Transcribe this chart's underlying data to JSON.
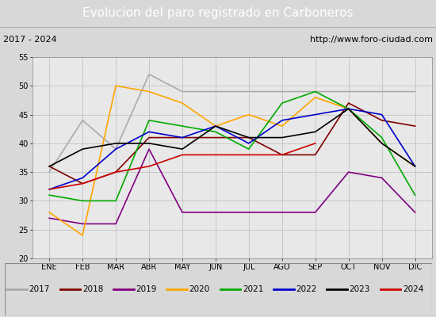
{
  "title": "Evolucion del paro registrado en Carboneros",
  "subtitle_left": "2017 - 2024",
  "subtitle_right": "http://www.foro-ciudad.com",
  "months": [
    "ENE",
    "FEB",
    "MAR",
    "ABR",
    "MAY",
    "JUN",
    "JUL",
    "AGO",
    "SEP",
    "OCT",
    "NOV",
    "DIC"
  ],
  "ylim": [
    20,
    55
  ],
  "yticks": [
    20,
    25,
    30,
    35,
    40,
    45,
    50,
    55
  ],
  "series": {
    "2017": {
      "color": "#aaaaaa",
      "values": [
        35,
        44,
        39,
        52,
        49,
        49,
        49,
        49,
        49,
        49,
        49,
        49
      ]
    },
    "2018": {
      "color": "#800000",
      "values": [
        36,
        33,
        35,
        41,
        41,
        41,
        41,
        38,
        38,
        47,
        44,
        43
      ]
    },
    "2019": {
      "color": "#800080",
      "values": [
        27,
        26,
        26,
        39,
        28,
        28,
        28,
        28,
        28,
        35,
        34,
        28
      ]
    },
    "2020": {
      "color": "#ffa500",
      "values": [
        28,
        24,
        50,
        49,
        47,
        43,
        45,
        43,
        48,
        46,
        40,
        36
      ]
    },
    "2021": {
      "color": "#00aa00",
      "values": [
        31,
        30,
        30,
        44,
        43,
        42,
        39,
        47,
        49,
        46,
        41,
        31
      ]
    },
    "2022": {
      "color": "#0000cc",
      "values": [
        32,
        34,
        39,
        42,
        41,
        43,
        40,
        44,
        45,
        46,
        45,
        36
      ]
    },
    "2023": {
      "color": "#000000",
      "values": [
        36,
        39,
        40,
        40,
        39,
        43,
        41,
        41,
        42,
        46,
        40,
        36
      ]
    },
    "2024": {
      "color": "#cc0000",
      "values": [
        32,
        33,
        35,
        36,
        38,
        38,
        38,
        38,
        40,
        null,
        null,
        null
      ]
    }
  },
  "background_color": "#d8d8d8",
  "plot_bg": "#e8e8e8",
  "title_bg": "#4472c4",
  "title_color": "white",
  "subtitle_bg": "#d0d0d0",
  "legend_bg": "#f0f0f0",
  "grid_color": "#bbbbbb",
  "title_fontsize": 11,
  "subtitle_fontsize": 8,
  "tick_fontsize": 7,
  "legend_fontsize": 7.5
}
